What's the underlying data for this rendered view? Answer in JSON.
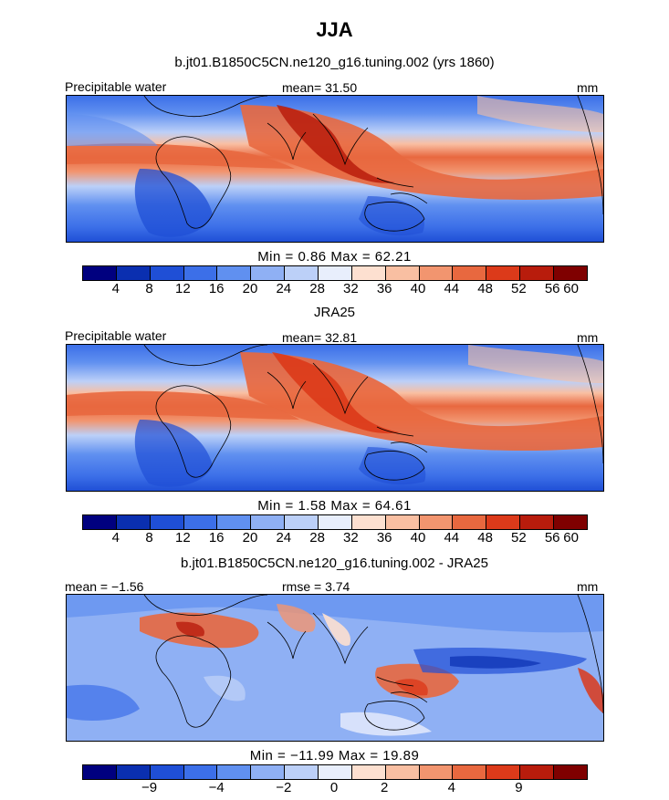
{
  "header": {
    "title": "JJA",
    "subtitle": "b.jt01.B1850C5CN.ne120_g16.tuning.002 (yrs 1860)"
  },
  "panel1": {
    "left_label": "Precipitable water",
    "mean_text": "mean=  31.50",
    "units": "mm",
    "min_max": "Min =    0.86  Max =   62.21"
  },
  "panel2": {
    "title": "JRA25",
    "left_label": "Precipitable water",
    "mean_text": "mean=  32.81",
    "units": "mm",
    "min_max": "Min =    1.58  Max =   64.61"
  },
  "panel3": {
    "title": "b.jt01.B1850C5CN.ne120_g16.tuning.002 - JRA25",
    "left_label": "mean =  −1.56",
    "rmse_text": "rmse =   3.74",
    "units": "mm",
    "min_max": "Min = −11.99  Max =  19.89"
  },
  "colorbar_abs": {
    "colors": [
      "#00007f",
      "#0a2fb0",
      "#1f4fd6",
      "#3c6fe8",
      "#6090f0",
      "#8fb0f4",
      "#bcd0f8",
      "#e8eefc",
      "#fde0d0",
      "#f9bfa2",
      "#f2956f",
      "#e8683f",
      "#dc3a1a",
      "#b81c0c",
      "#7f0000"
    ],
    "ticks": [
      "4",
      "8",
      "12",
      "16",
      "20",
      "24",
      "28",
      "32",
      "36",
      "40",
      "44",
      "48",
      "52",
      "56",
      "60"
    ]
  },
  "colorbar_diff": {
    "colors": [
      "#00007f",
      "#0a2fb0",
      "#1f4fd6",
      "#3c6fe8",
      "#6090f0",
      "#8fb0f4",
      "#bcd0f8",
      "#e8eefc",
      "#fde0d0",
      "#f9bfa2",
      "#f2956f",
      "#e8683f",
      "#dc3a1a",
      "#b81c0c",
      "#7f0000"
    ],
    "ticks": [
      "−9",
      "−4",
      "−2",
      "0",
      "2",
      "4",
      "9"
    ]
  }
}
